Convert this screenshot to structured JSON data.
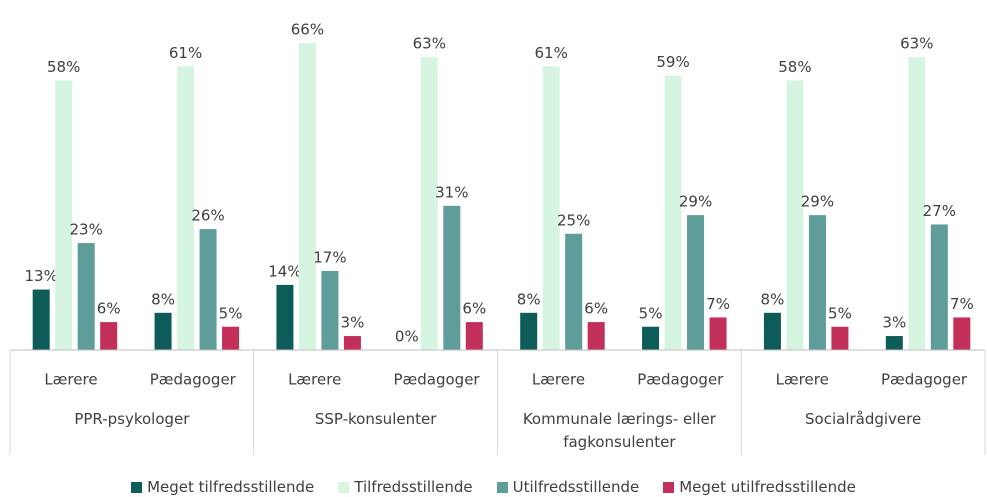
{
  "chart_data": {
    "type": "bar",
    "categories": [
      "Lærere",
      "Pædagoger",
      "Lærere",
      "Pædagoger",
      "Lærere",
      "Pædagoger",
      "Lærere",
      "Pædagoger"
    ],
    "groups": [
      "PPR-psykologer",
      "SSP-konsulenter",
      "Kommunale lærings- eller fagkonsulenter",
      "Socialrådgivere"
    ],
    "series": [
      {
        "name": "Meget tilfredsstillende",
        "color": "#0d5c59",
        "values": [
          13,
          8,
          14,
          0,
          8,
          5,
          8,
          3
        ],
        "value_labels": [
          "13%",
          "8%",
          "14%",
          "0%",
          "8%",
          "5%",
          "8%",
          "3%"
        ]
      },
      {
        "name": "Tilfredsstillende",
        "color": "#d6f5e0",
        "values": [
          58,
          61,
          66,
          63,
          61,
          59,
          58,
          63
        ],
        "value_labels": [
          "58%",
          "61%",
          "66%",
          "63%",
          "61%",
          "59%",
          "58%",
          "63%"
        ]
      },
      {
        "name": "Utilfredsstillende",
        "color": "#5e9d99",
        "values": [
          23,
          26,
          17,
          31,
          25,
          29,
          29,
          27
        ],
        "value_labels": [
          "23%",
          "26%",
          "17%",
          "31%",
          "25%",
          "29%",
          "29%",
          "27%"
        ]
      },
      {
        "name": "Meget utilfredsstillende",
        "color": "#c2305a",
        "values": [
          6,
          5,
          3,
          6,
          6,
          7,
          5,
          7
        ],
        "value_labels": [
          "6%",
          "5%",
          "3%",
          "6%",
          "6%",
          "7%",
          "5%",
          "7%"
        ]
      }
    ]
  }
}
